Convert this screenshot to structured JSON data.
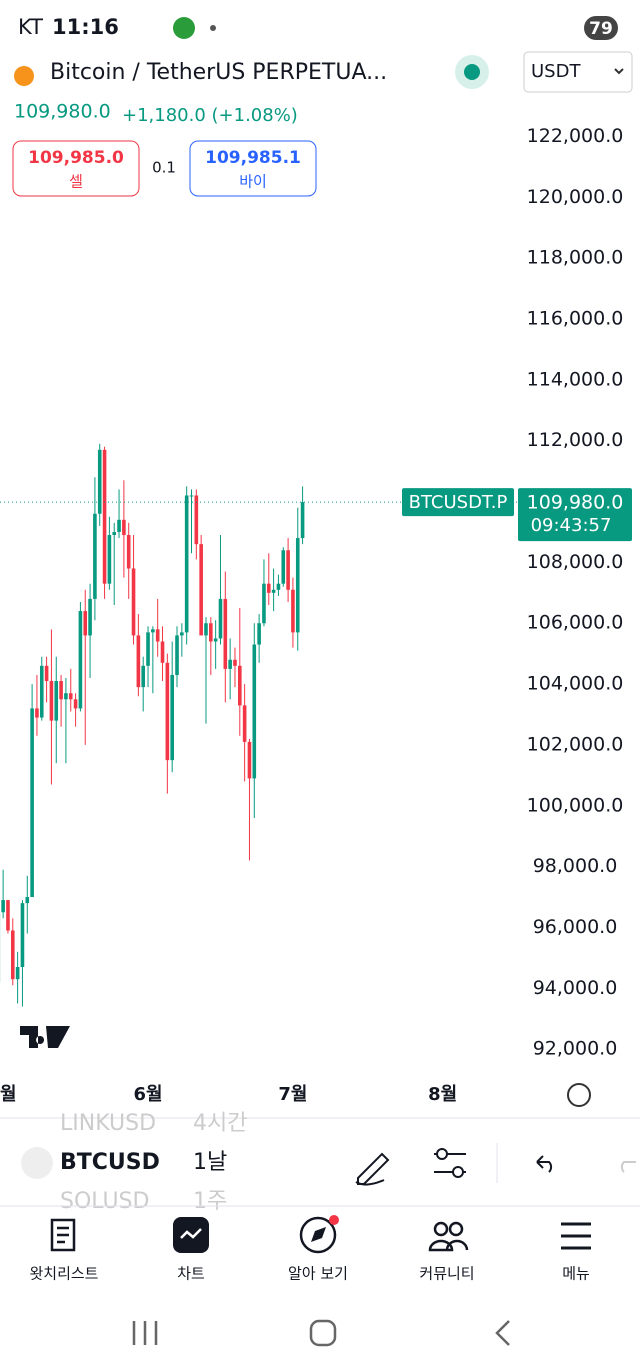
{
  "status_bar": {
    "carrier": "KT",
    "time": "11:16",
    "battery": "79"
  },
  "header": {
    "symbol": "Bitcoin / TetherUS PERPETUA...",
    "currency": "USDT",
    "last_price": "109,980.0",
    "change": "+1,180.0 (+1.08%)"
  },
  "trade": {
    "sell_price": "109,985.0",
    "sell_label": "셀",
    "spread": "0.1",
    "buy_price": "109,985.1",
    "buy_label": "바이"
  },
  "chart_data": {
    "type": "candlestick",
    "up_color": "#089981",
    "down_color": "#f23645",
    "symbol_tag": "BTCUSDT.P",
    "price_tag": "109,980.0",
    "countdown": "09:43:57",
    "open": [
      94200,
      96500,
      96900,
      95900,
      94300,
      94700,
      96800,
      97000,
      103200,
      102900,
      104600,
      104100,
      102800,
      104100,
      103500,
      103700,
      103500,
      103200,
      106400,
      105600,
      106800,
      109600,
      111700,
      107300,
      108900,
      109000,
      109400,
      108900,
      107800,
      105600,
      103900,
      104600,
      105700,
      105800,
      105400,
      104700,
      101500,
      104300,
      105600,
      105700,
      110200,
      110200,
      108600,
      105600,
      106000,
      105400,
      105500,
      106800,
      104500,
      104800,
      104600,
      103300,
      102100,
      100900,
      105300,
      106000,
      107300,
      107000,
      107100,
      107300,
      108400,
      107100,
      105700,
      108800
    ],
    "high": [
      97400,
      97900,
      96900,
      96300,
      95200,
      96900,
      97700,
      104000,
      104300,
      104900,
      104900,
      105800,
      104900,
      104300,
      104200,
      104500,
      103700,
      106700,
      107100,
      107300,
      110800,
      111900,
      111800,
      109500,
      109300,
      110400,
      110700,
      109300,
      108900,
      106300,
      104900,
      105900,
      105900,
      106800,
      105900,
      105000,
      105400,
      105900,
      106000,
      110500,
      110400,
      110400,
      108900,
      106200,
      106200,
      106100,
      108900,
      107700,
      105500,
      105200,
      106500,
      104000,
      102200,
      106000,
      106300,
      108100,
      108300,
      107800,
      107600,
      108500,
      108800,
      107500,
      109800,
      110500
    ],
    "low": [
      94100,
      96300,
      95800,
      94100,
      93500,
      93400,
      95800,
      97000,
      102300,
      102800,
      103400,
      100700,
      101400,
      102600,
      101400,
      103100,
      102600,
      103100,
      102000,
      104200,
      106100,
      109200,
      106800,
      107100,
      106600,
      108800,
      107500,
      106800,
      105300,
      103600,
      103100,
      103900,
      103700,
      104900,
      104100,
      100400,
      101100,
      103900,
      104900,
      105300,
      108300,
      108100,
      105600,
      102700,
      104300,
      104500,
      105300,
      103400,
      103500,
      103900,
      102300,
      100800,
      98200,
      99600,
      104700,
      105900,
      106600,
      106400,
      106900,
      107200,
      106700,
      105200,
      105100,
      108600
    ],
    "close": [
      96500,
      96900,
      95900,
      94300,
      94700,
      96800,
      97000,
      103200,
      102900,
      104600,
      104100,
      102800,
      104100,
      103500,
      103700,
      103500,
      103200,
      106400,
      105600,
      106800,
      109600,
      111700,
      107300,
      108900,
      109000,
      109400,
      108900,
      107800,
      105600,
      103900,
      104600,
      105700,
      105800,
      105400,
      104700,
      101500,
      104300,
      105600,
      105700,
      110200,
      110200,
      108600,
      105600,
      106000,
      105400,
      105500,
      106800,
      104500,
      104800,
      104600,
      103300,
      102100,
      100900,
      105300,
      106000,
      107300,
      107000,
      107100,
      107300,
      108400,
      107100,
      105700,
      108800,
      109980
    ],
    "ylim": [
      91150,
      123200
    ],
    "yticks": [
      {
        "value": 92000,
        "label": "92,000.0"
      },
      {
        "value": 94000,
        "label": "94,000.0"
      },
      {
        "value": 96000,
        "label": "96,000.0"
      },
      {
        "value": 98000,
        "label": "98,000.0"
      },
      {
        "value": 100000,
        "label": "100,000.0"
      },
      {
        "value": 102000,
        "label": "102,000.0"
      },
      {
        "value": 104000,
        "label": "104,000.0"
      },
      {
        "value": 106000,
        "label": "106,000.0"
      },
      {
        "value": 108000,
        "label": "108,000.0"
      },
      {
        "value": 110000,
        "label": "110,000.0"
      },
      {
        "value": 112000,
        "label": "112,000.0"
      },
      {
        "value": 114000,
        "label": "114,000.0"
      },
      {
        "value": 116000,
        "label": "116,000.0"
      },
      {
        "value": 118000,
        "label": "118,000.0"
      },
      {
        "value": 120000,
        "label": "120,000.0"
      },
      {
        "value": 122000,
        "label": "122,000.0"
      }
    ],
    "xticks": [
      {
        "value": 0,
        "label": "월"
      },
      {
        "value": 31,
        "label": "6월"
      },
      {
        "value": 61,
        "label": "7월"
      },
      {
        "value": 92,
        "label": "8월"
      }
    ]
  },
  "toolbar": {
    "symbols": [
      "LINKUSD",
      "BTCUSD",
      "SOLUSD"
    ],
    "intervals": [
      "4시간",
      "1날",
      "1주"
    ]
  },
  "nav": [
    "왓치리스트",
    "차트",
    "알아 보기",
    "커뮤니티",
    "메뉴"
  ]
}
